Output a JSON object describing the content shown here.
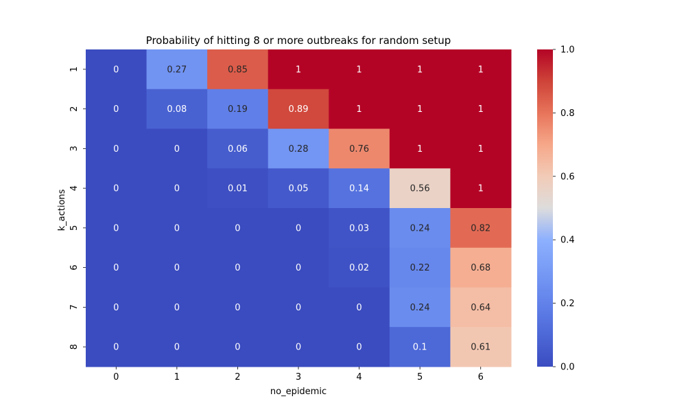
{
  "chart_data": {
    "type": "heatmap",
    "title": "Probability of hitting 8 or more outbreaks for random setup",
    "xlabel": "no_epidemic",
    "ylabel": "k_actions",
    "x_categories": [
      "0",
      "1",
      "2",
      "3",
      "4",
      "5",
      "6"
    ],
    "y_categories": [
      "1",
      "2",
      "3",
      "4",
      "5",
      "6",
      "7",
      "8"
    ],
    "values": [
      [
        0,
        0.27,
        0.85,
        1,
        1,
        1,
        1
      ],
      [
        0,
        0.08,
        0.19,
        0.89,
        1,
        1,
        1
      ],
      [
        0,
        0,
        0.06,
        0.28,
        0.76,
        1,
        1
      ],
      [
        0,
        0,
        0.01,
        0.05,
        0.14,
        0.56,
        1
      ],
      [
        0,
        0,
        0,
        0,
        0.03,
        0.24,
        0.82
      ],
      [
        0,
        0,
        0,
        0,
        0.02,
        0.22,
        0.68
      ],
      [
        0,
        0,
        0,
        0,
        0,
        0.24,
        0.64
      ],
      [
        0,
        0,
        0,
        0,
        0,
        0.1,
        0.61
      ]
    ],
    "colormap": "coolwarm",
    "vmin": 0,
    "vmax": 1,
    "colorbar_ticks": [
      "0.0",
      "0.2",
      "0.4",
      "0.6",
      "0.8",
      "1.0"
    ],
    "annotations": true,
    "legend": "colorbar-right"
  }
}
